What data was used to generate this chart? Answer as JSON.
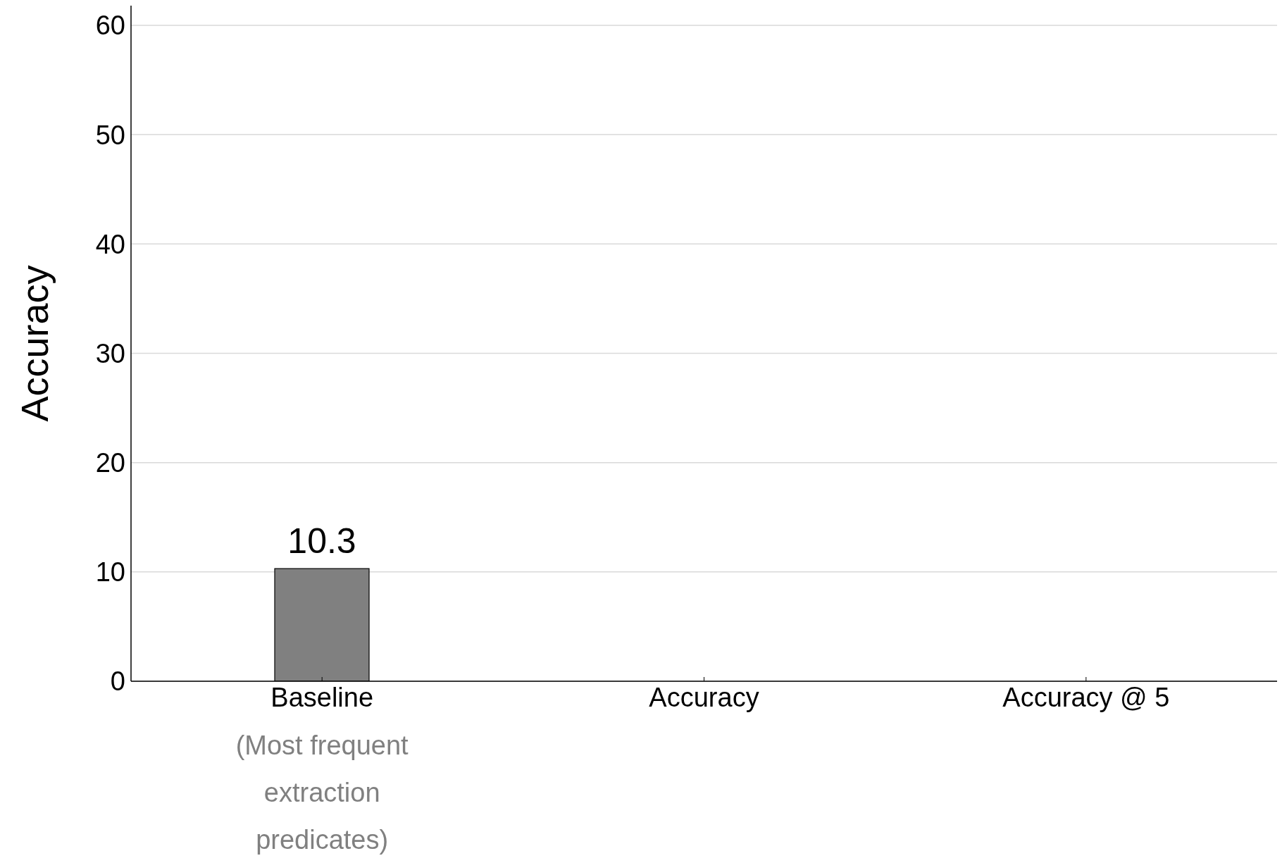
{
  "chart_data": {
    "type": "bar",
    "ylabel": "Accuracy",
    "categories": [
      "Baseline",
      "Accuracy",
      "Accuracy @ 5"
    ],
    "values": [
      10.3,
      null,
      null
    ],
    "color": "#808080",
    "ylim": [
      0,
      61.8
    ],
    "yticks": [
      0,
      10,
      20,
      30,
      40,
      50,
      60
    ],
    "grid": "y",
    "data_labels": true,
    "annotations": [
      "(Most frequent extraction predicates)"
    ]
  }
}
